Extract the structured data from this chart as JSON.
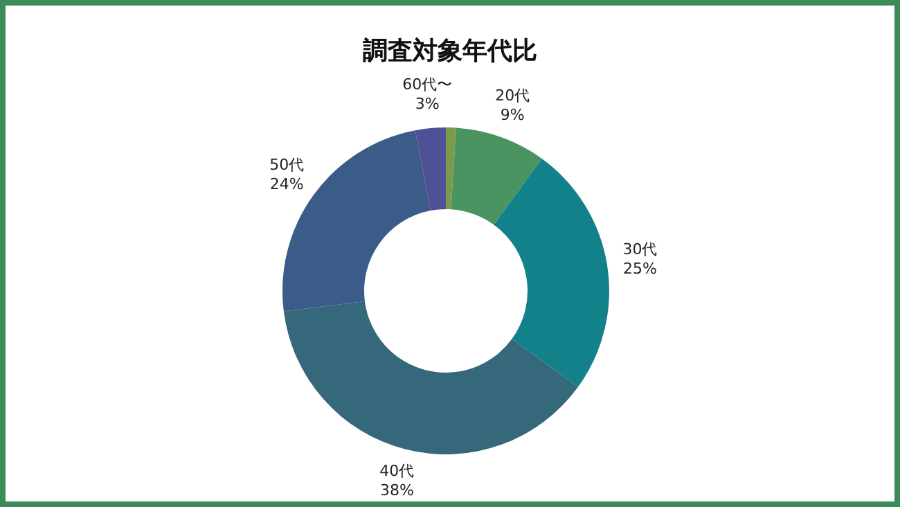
{
  "chart_data": {
    "type": "donut",
    "title": "調査対象年代比",
    "categories": [
      null,
      "20代",
      "30代",
      "40代",
      "50代",
      "60代〜"
    ],
    "values": [
      1,
      9,
      25,
      38,
      24,
      3
    ],
    "value_labels": [
      null,
      "9%",
      "25%",
      "38%",
      "24%",
      "3%"
    ],
    "colors": [
      "#7c9a4c",
      "#4a9462",
      "#13818a",
      "#35687b",
      "#3b5b88",
      "#4f5096"
    ],
    "legend": false
  }
}
